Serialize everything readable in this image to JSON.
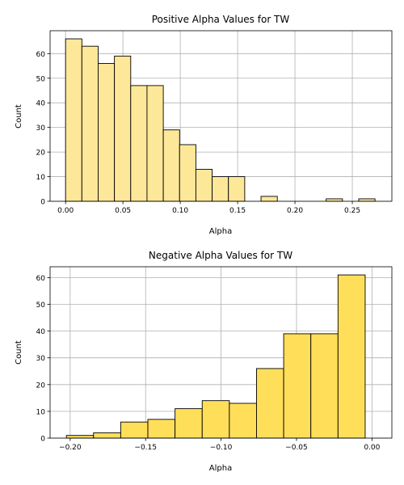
{
  "chart_data": [
    {
      "type": "bar",
      "title": "Positive Alpha Values for TW",
      "xlabel": "Alpha",
      "ylabel": "Count",
      "color": "#fde89a",
      "xlim": [
        -0.0135,
        0.2845
      ],
      "ylim": [
        0,
        69.3
      ],
      "xticks": [
        0.0,
        0.05,
        0.1,
        0.15,
        0.2,
        0.25
      ],
      "xtick_labels": [
        "0.00",
        "0.05",
        "0.10",
        "0.15",
        "0.20",
        "0.25"
      ],
      "yticks": [
        0,
        10,
        20,
        30,
        40,
        50,
        60
      ],
      "ytick_labels": [
        "0",
        "10",
        "20",
        "30",
        "40",
        "50",
        "60"
      ],
      "grid": true,
      "bins": [
        {
          "x0": 0.0,
          "x1": 0.0142,
          "count": 66
        },
        {
          "x0": 0.0142,
          "x1": 0.0284,
          "count": 63
        },
        {
          "x0": 0.0284,
          "x1": 0.0426,
          "count": 56
        },
        {
          "x0": 0.0426,
          "x1": 0.0568,
          "count": 59
        },
        {
          "x0": 0.0568,
          "x1": 0.071,
          "count": 47
        },
        {
          "x0": 0.071,
          "x1": 0.0852,
          "count": 47
        },
        {
          "x0": 0.0852,
          "x1": 0.0994,
          "count": 29
        },
        {
          "x0": 0.0994,
          "x1": 0.1136,
          "count": 23
        },
        {
          "x0": 0.1136,
          "x1": 0.1278,
          "count": 13
        },
        {
          "x0": 0.1278,
          "x1": 0.142,
          "count": 10
        },
        {
          "x0": 0.142,
          "x1": 0.1562,
          "count": 10
        },
        {
          "x0": 0.1704,
          "x1": 0.1846,
          "count": 2
        },
        {
          "x0": 0.2272,
          "x1": 0.2414,
          "count": 1
        },
        {
          "x0": 0.2556,
          "x1": 0.2698,
          "count": 1
        }
      ]
    },
    {
      "type": "bar",
      "title": "Negative Alpha Values for TW",
      "xlabel": "Alpha",
      "ylabel": "Count",
      "color": "#ffdf59",
      "xlim": [
        -0.2133,
        0.0132
      ],
      "ylim": [
        0,
        64.05
      ],
      "xticks": [
        -0.2,
        -0.15,
        -0.1,
        -0.05,
        0.0
      ],
      "xtick_labels": [
        "−0.20",
        "−0.15",
        "−0.10",
        "−0.05",
        "0.00"
      ],
      "yticks": [
        0,
        10,
        20,
        30,
        40,
        50,
        60
      ],
      "ytick_labels": [
        "0",
        "10",
        "20",
        "30",
        "40",
        "50",
        "60"
      ],
      "grid": true,
      "bins": [
        {
          "x0": -0.2025,
          "x1": -0.1845,
          "count": 1
        },
        {
          "x0": -0.1845,
          "x1": -0.1665,
          "count": 2
        },
        {
          "x0": -0.1665,
          "x1": -0.1485,
          "count": 6
        },
        {
          "x0": -0.1485,
          "x1": -0.1305,
          "count": 7
        },
        {
          "x0": -0.1305,
          "x1": -0.1125,
          "count": 11
        },
        {
          "x0": -0.1125,
          "x1": -0.0945,
          "count": 14
        },
        {
          "x0": -0.0945,
          "x1": -0.0765,
          "count": 13
        },
        {
          "x0": -0.0765,
          "x1": -0.0585,
          "count": 26
        },
        {
          "x0": -0.0585,
          "x1": -0.0405,
          "count": 39
        },
        {
          "x0": -0.0405,
          "x1": -0.0225,
          "count": 39
        },
        {
          "x0": -0.0225,
          "x1": -0.0045,
          "count": 61
        }
      ]
    }
  ]
}
